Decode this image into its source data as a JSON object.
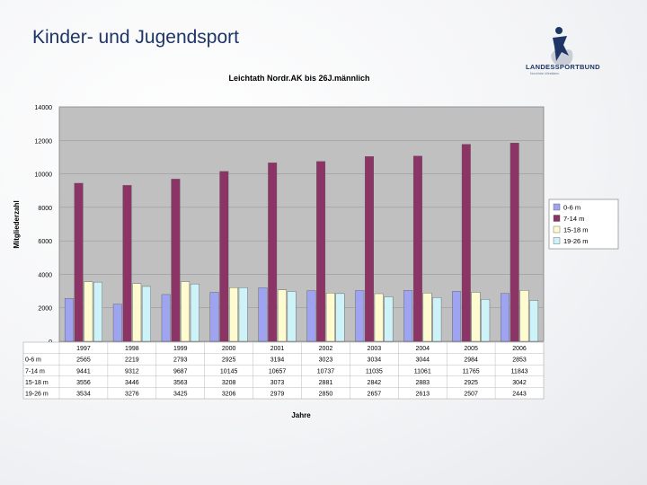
{
  "slide": {
    "title": "Kinder- und Jugendsport",
    "logo_text": "LANDESSPORTBUND",
    "logo_subtext": "Nordrhein-Westfalen"
  },
  "colors": {
    "series": [
      "#9fa4f0",
      "#8c3466",
      "#fdfbcf",
      "#cdf2f7"
    ],
    "plot_bg": "#c0c0c0",
    "brand": "#1f3566"
  },
  "chart_data": {
    "type": "bar",
    "title": "Leichtath Nordr.AK bis 26J.männlich",
    "xlabel": "Jahre",
    "ylabel": "Mitgliederzahl",
    "ylim": [
      0,
      14000
    ],
    "yticks": [
      "0",
      "2000",
      "4000",
      "6000",
      "8000",
      "10000",
      "12000",
      "14000"
    ],
    "categories": [
      "1997",
      "1998",
      "1999",
      "2000",
      "2001",
      "2002",
      "2003",
      "2004",
      "2005",
      "2006"
    ],
    "legend_position": "right",
    "series": [
      {
        "name": "0-6 m",
        "table_label": "0-6 m",
        "values": [
          2565,
          2219,
          2793,
          2925,
          3194,
          3023,
          3034,
          3044,
          2984,
          2853
        ]
      },
      {
        "name": "7-14 m",
        "table_label": "7-14 m",
        "values": [
          9441,
          9312,
          9687,
          10145,
          10657,
          10737,
          11035,
          11061,
          11765,
          11843
        ]
      },
      {
        "name": "15-18 m",
        "table_label": "15-18 m",
        "values": [
          3556,
          3446,
          3563,
          3208,
          3073,
          2881,
          2842,
          2883,
          2925,
          3042
        ]
      },
      {
        "name": "19-26 m",
        "table_label": "19-26 m",
        "values": [
          3534,
          3276,
          3425,
          3206,
          2979,
          2850,
          2657,
          2613,
          2507,
          2443
        ]
      }
    ]
  }
}
